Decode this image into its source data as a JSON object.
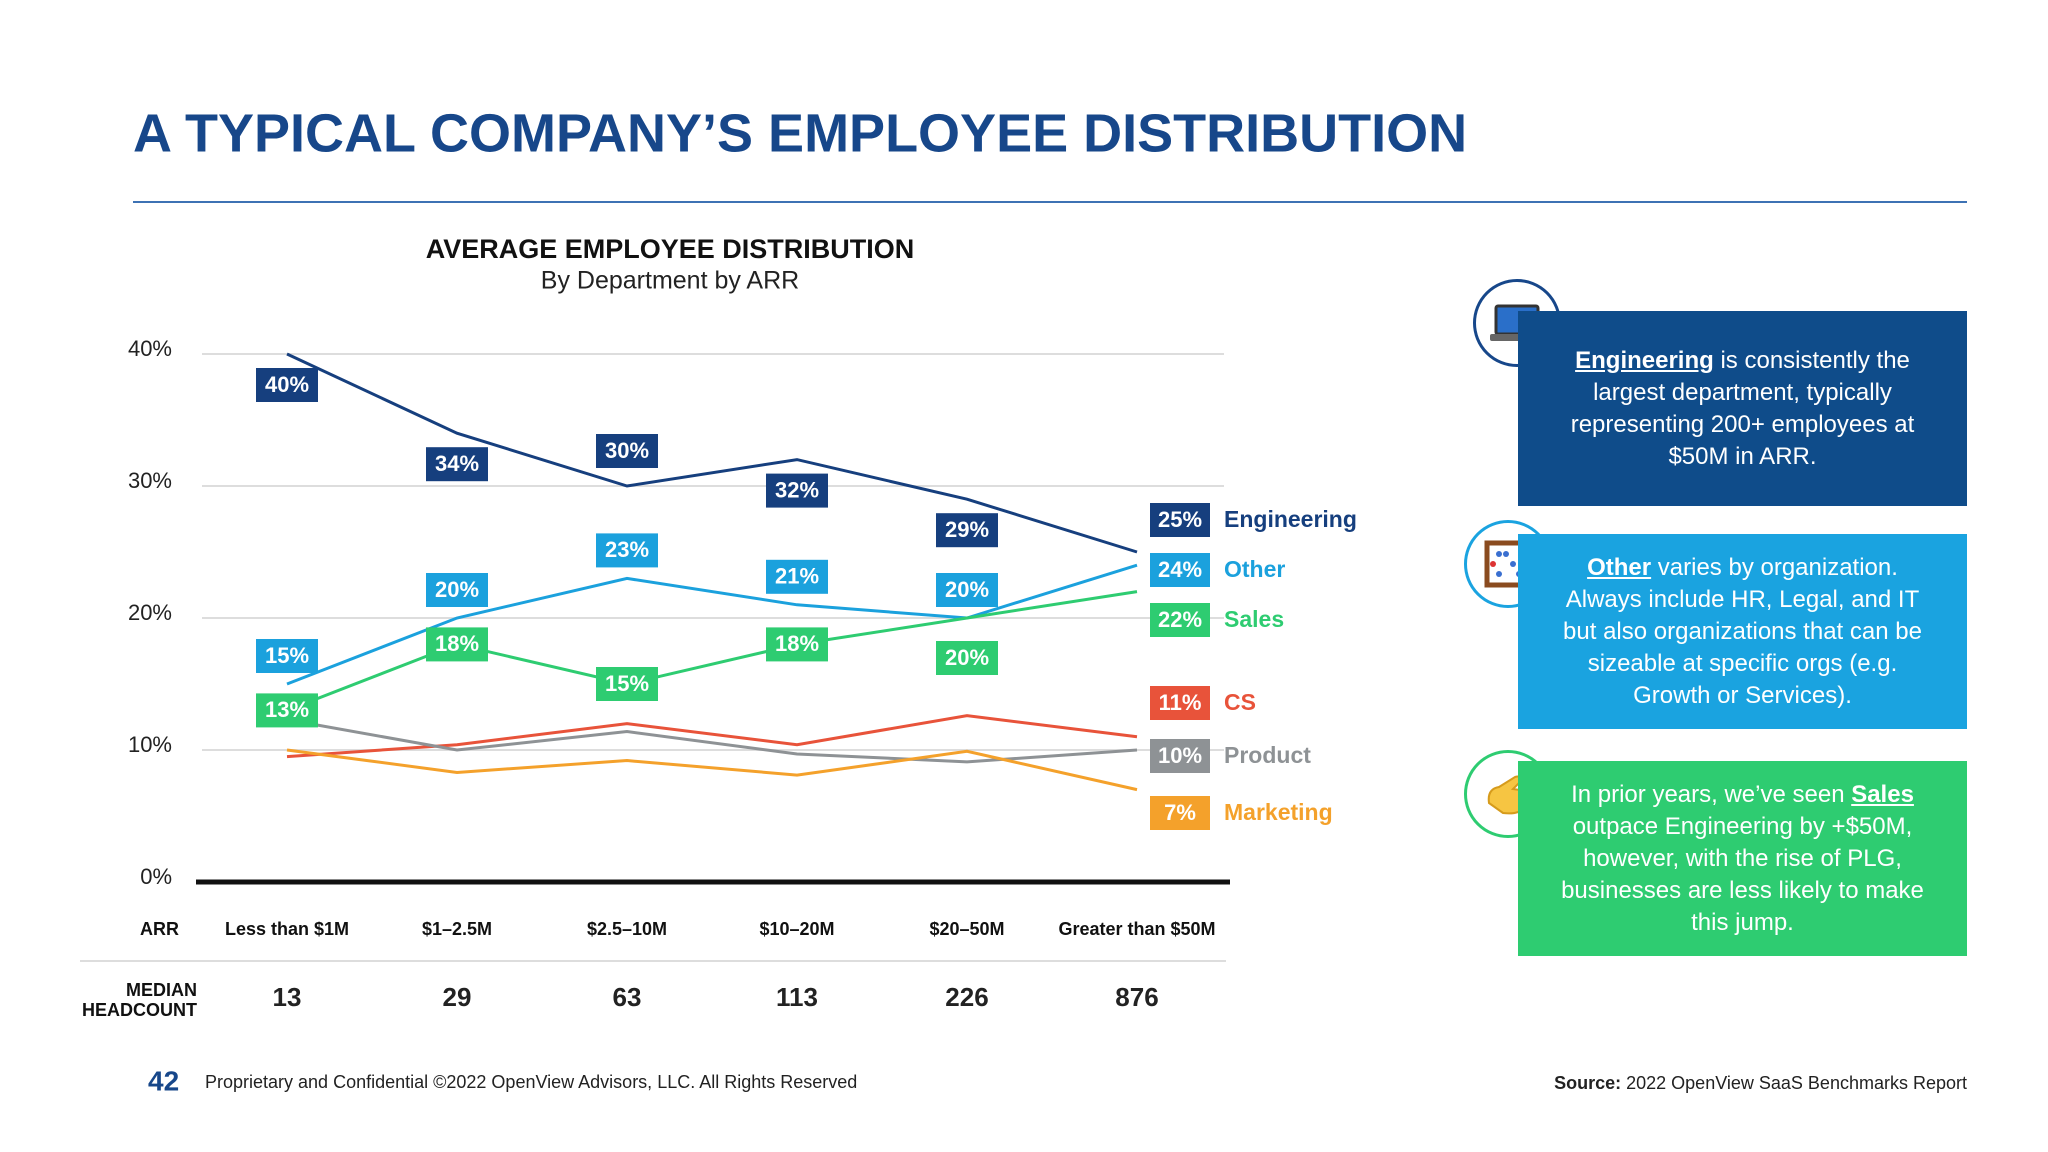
{
  "title": "A TYPICAL COMPANY’S EMPLOYEE DISTRIBUTION",
  "chart_data": {
    "type": "line",
    "title": "AVERAGE EMPLOYEE DISTRIBUTION",
    "subtitle": "By Department by ARR",
    "x_label": "ARR",
    "categories": [
      "Less than $1M",
      "$1–2.5M",
      "$2.5–10M",
      "$10–20M",
      "$20–50M",
      "Greater than $50M"
    ],
    "ylim": [
      0,
      40
    ],
    "yticks": [
      {
        "value": 0,
        "label": "0%"
      },
      {
        "value": 10,
        "label": "10%"
      },
      {
        "value": 20,
        "label": "20%"
      },
      {
        "value": 30,
        "label": "30%"
      },
      {
        "value": 40,
        "label": "40%"
      }
    ],
    "grid": true,
    "series": [
      {
        "name": "Engineering",
        "color": "#163f7e",
        "values": [
          40,
          34,
          30,
          32,
          29,
          25
        ],
        "value_labels": [
          "40%",
          "34%",
          "30%",
          "32%",
          "29%",
          "25%"
        ]
      },
      {
        "name": "Other",
        "color": "#1ba1dd",
        "values": [
          15,
          20,
          23,
          21,
          20,
          24
        ],
        "value_labels": [
          "15%",
          "20%",
          "23%",
          "21%",
          "20%",
          "24%"
        ]
      },
      {
        "name": "Sales",
        "color": "#2ecc71",
        "values": [
          13,
          18,
          15,
          18,
          20,
          22
        ],
        "value_labels": [
          "13%",
          "18%",
          "15%",
          "18%",
          "20%",
          "22%"
        ]
      },
      {
        "name": "CS",
        "color": "#e8533a",
        "values": [
          9.5,
          10.4,
          12,
          10.4,
          12.6,
          11
        ],
        "value_labels": [
          null,
          null,
          null,
          null,
          null,
          "11%"
        ]
      },
      {
        "name": "Product",
        "color": "#8e9295",
        "values": [
          12.3,
          10,
          11.4,
          9.7,
          9.1,
          10
        ],
        "value_labels": [
          null,
          null,
          null,
          null,
          null,
          "10%"
        ]
      },
      {
        "name": "Marketing",
        "color": "#f4a12b",
        "values": [
          10,
          8.3,
          9.2,
          8.1,
          9.9,
          7
        ],
        "value_labels": [
          null,
          null,
          null,
          null,
          null,
          "7%"
        ]
      }
    ]
  },
  "headcount": {
    "label": [
      "MEDIAN",
      "HEADCOUNT"
    ],
    "values": [
      13,
      29,
      63,
      113,
      226,
      876
    ]
  },
  "callouts": [
    [
      {
        "text": "Engineering",
        "strong": true
      },
      {
        "text": " is consistently the largest department, typically representing 200+ employees at $50M in ARR."
      }
    ],
    [
      {
        "text": "Other",
        "strong": true
      },
      {
        "text": " varies by organization. Always include HR, Legal, and IT but also organizations that can be sizeable at specific orgs (e.g. Growth or Services)."
      }
    ],
    [
      {
        "text": "In prior years, we’ve seen "
      },
      {
        "text": "Sales",
        "strong": true
      },
      {
        "text": " outpace Engineering by +$50M, however, with the rise of PLG, businesses are less likely to make this jump."
      }
    ]
  ],
  "footer": {
    "page": "42",
    "note": "Proprietary and Confidential ©2022 OpenView Advisors, LLC. All Rights Reserved",
    "source": {
      "label": "Source:",
      "text": "2022 OpenView SaaS Benchmarks Report"
    }
  }
}
